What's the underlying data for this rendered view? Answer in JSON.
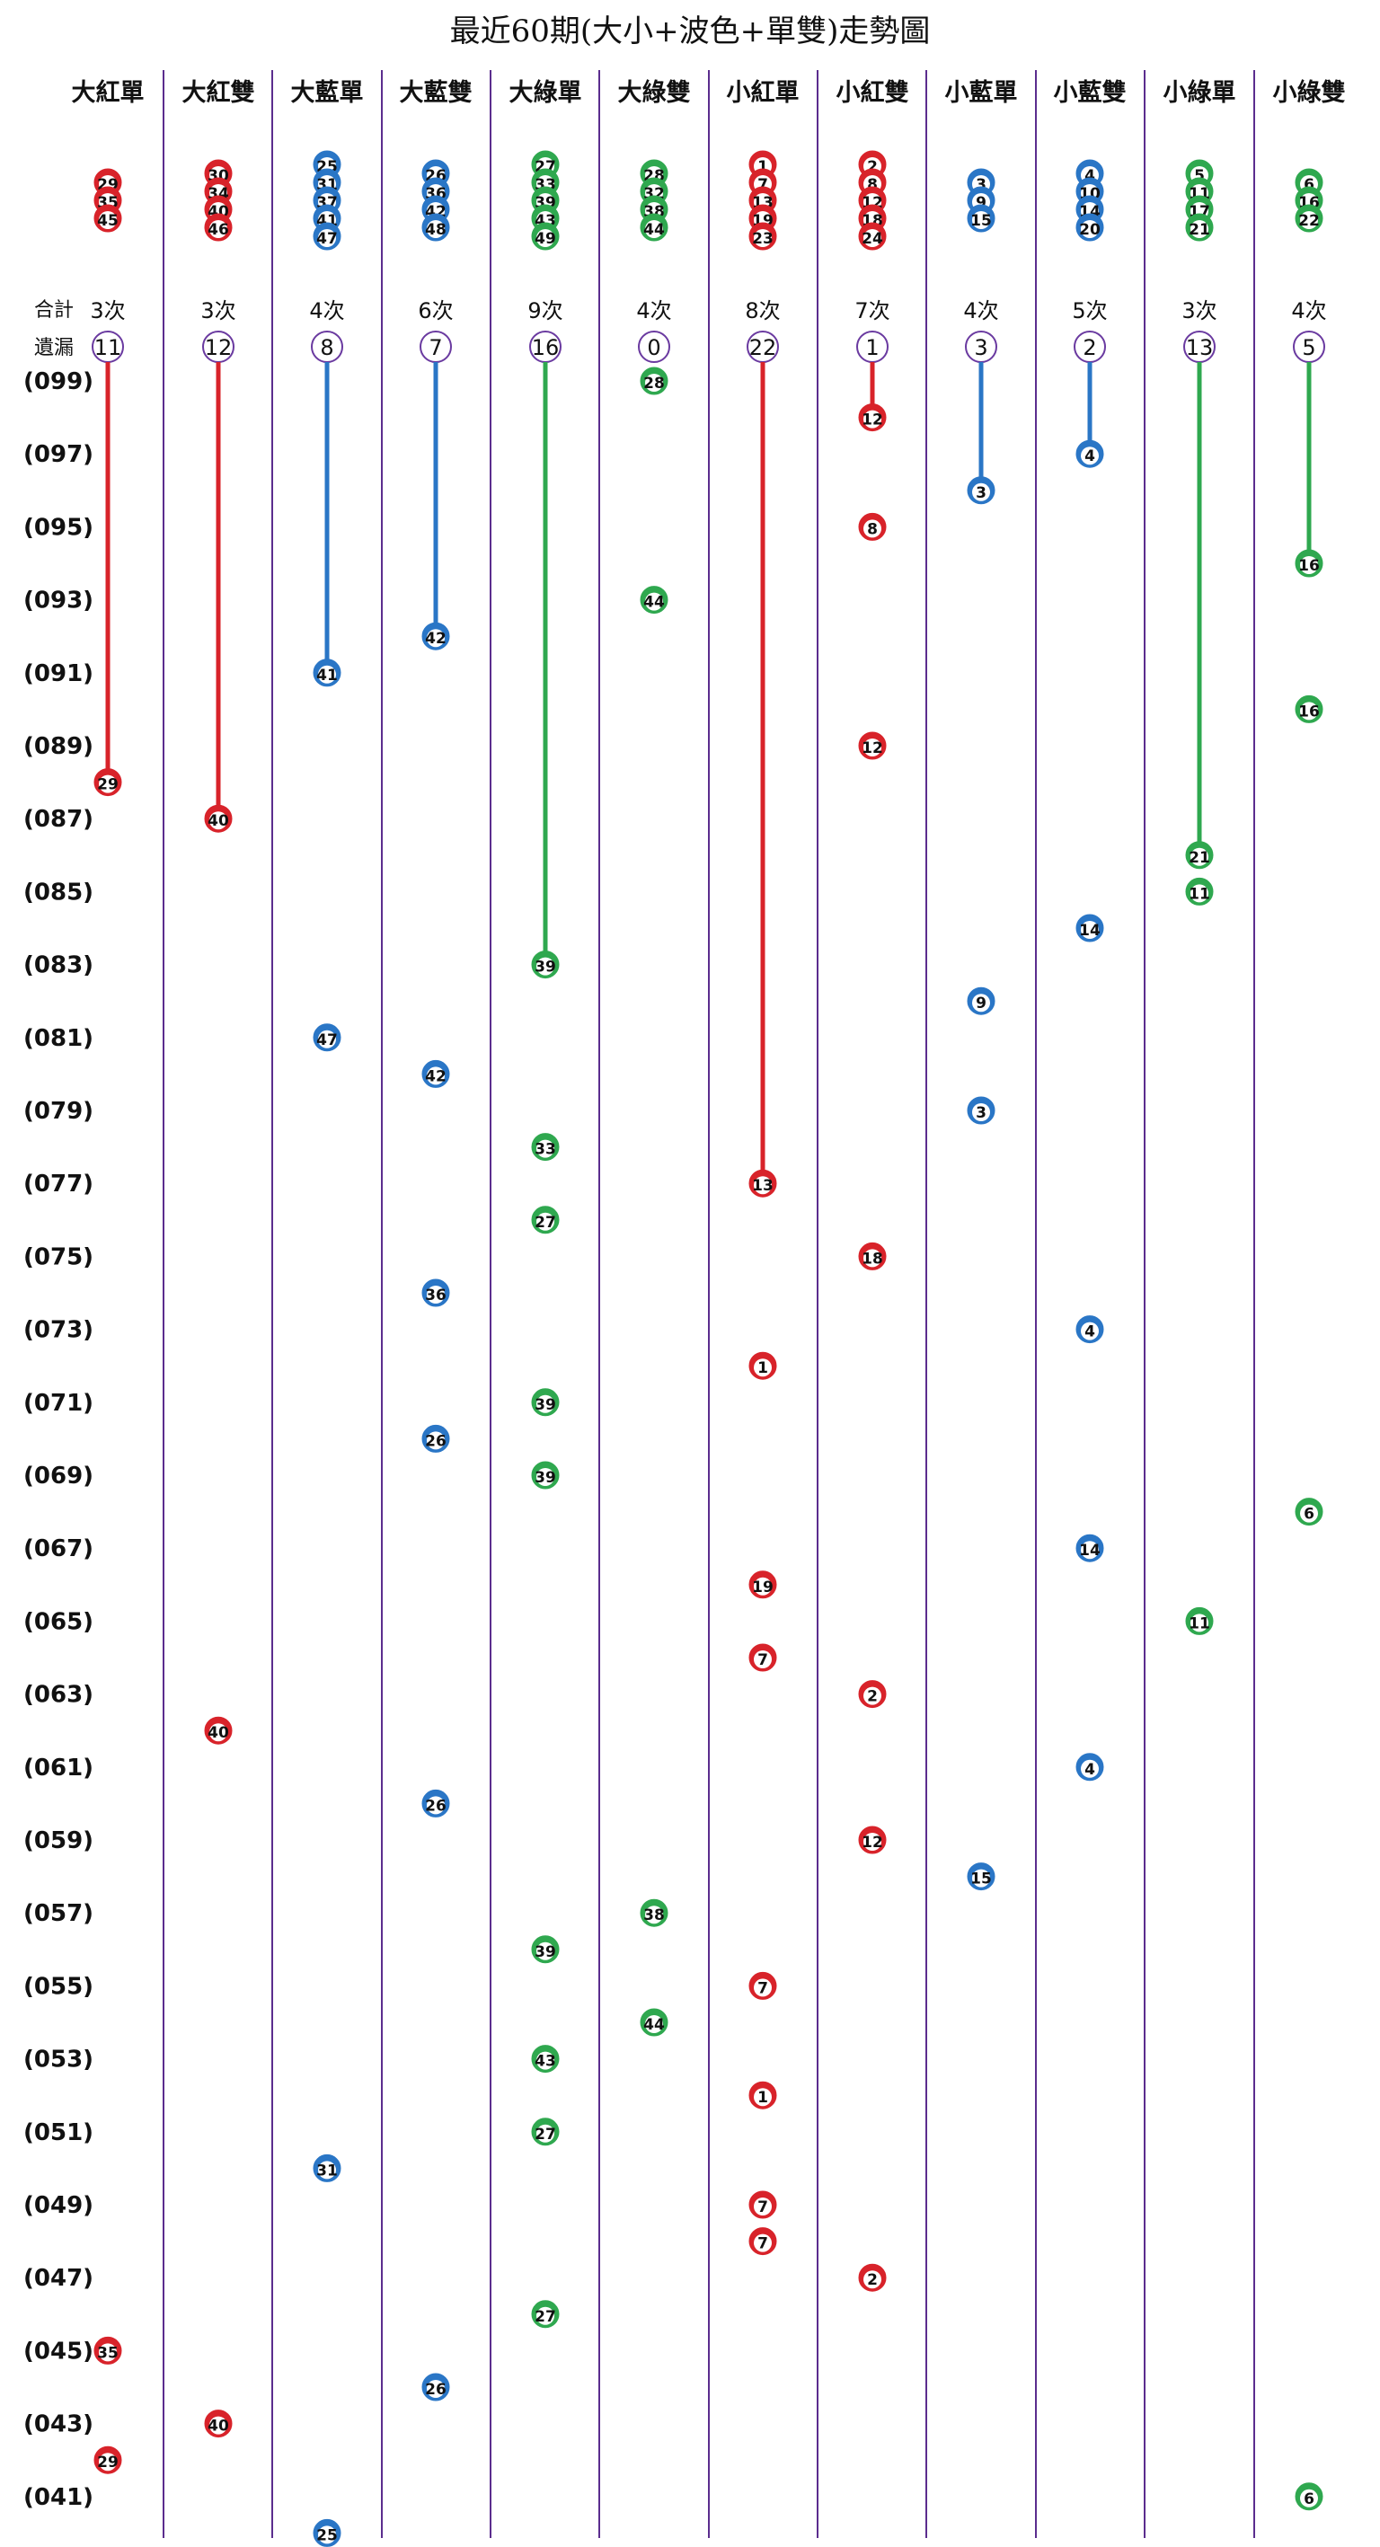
{
  "chart_data": {
    "type": "table",
    "title": "最近60期(大小+波色+單雙)走勢圖",
    "summary_labels": {
      "total": "合計",
      "missing": "遺漏"
    },
    "colors": {
      "red": "#d8232a",
      "blue": "#2a76c6",
      "green": "#2fa84f",
      "divider": "#5b2d8e",
      "missing_circle": "#6a3aa0"
    },
    "columns": [
      {
        "name": "大紅單",
        "color": "red",
        "numbers": [
          29,
          35,
          45
        ],
        "count": "3次",
        "missing": 11
      },
      {
        "name": "大紅雙",
        "color": "red",
        "numbers": [
          30,
          34,
          40,
          46
        ],
        "count": "3次",
        "missing": 12
      },
      {
        "name": "大藍單",
        "color": "blue",
        "numbers": [
          25,
          31,
          37,
          41,
          47
        ],
        "count": "4次",
        "missing": 8
      },
      {
        "name": "大藍雙",
        "color": "blue",
        "numbers": [
          26,
          36,
          42,
          48
        ],
        "count": "6次",
        "missing": 7
      },
      {
        "name": "大綠單",
        "color": "green",
        "numbers": [
          27,
          33,
          39,
          43,
          49
        ],
        "count": "9次",
        "missing": 16
      },
      {
        "name": "大綠雙",
        "color": "green",
        "numbers": [
          28,
          32,
          38,
          44
        ],
        "count": "4次",
        "missing": 0
      },
      {
        "name": "小紅單",
        "color": "red",
        "numbers": [
          1,
          7,
          13,
          19,
          23
        ],
        "count": "8次",
        "missing": 22
      },
      {
        "name": "小紅雙",
        "color": "red",
        "numbers": [
          2,
          8,
          12,
          18,
          24
        ],
        "count": "7次",
        "missing": 1
      },
      {
        "name": "小藍單",
        "color": "blue",
        "numbers": [
          3,
          9,
          15
        ],
        "count": "4次",
        "missing": 3
      },
      {
        "name": "小藍雙",
        "color": "blue",
        "numbers": [
          4,
          10,
          14,
          20
        ],
        "count": "5次",
        "missing": 2
      },
      {
        "name": "小綠單",
        "color": "green",
        "numbers": [
          5,
          11,
          17,
          21
        ],
        "count": "3次",
        "missing": 13
      },
      {
        "name": "小綠雙",
        "color": "green",
        "numbers": [
          6,
          16,
          22
        ],
        "count": "4次",
        "missing": 5
      }
    ],
    "period_labels": [
      "(099)",
      "(097)",
      "(095)",
      "(093)",
      "(091)",
      "(089)",
      "(087)",
      "(085)",
      "(083)",
      "(081)",
      "(079)",
      "(077)",
      "(075)",
      "(073)",
      "(071)",
      "(069)",
      "(067)",
      "(065)",
      "(063)",
      "(061)",
      "(059)",
      "(057)",
      "(055)",
      "(053)",
      "(051)",
      "(049)",
      "(047)",
      "(045)",
      "(043)",
      "(041)"
    ],
    "draws": [
      {
        "period": 99,
        "col": 5,
        "num": 28
      },
      {
        "period": 98,
        "col": 7,
        "num": 12
      },
      {
        "period": 97,
        "col": 9,
        "num": 4
      },
      {
        "period": 96,
        "col": 8,
        "num": 3
      },
      {
        "period": 95,
        "col": 7,
        "num": 8
      },
      {
        "period": 94,
        "col": 11,
        "num": 16
      },
      {
        "period": 93,
        "col": 5,
        "num": 44
      },
      {
        "period": 92,
        "col": 3,
        "num": 42
      },
      {
        "period": 91,
        "col": 2,
        "num": 41
      },
      {
        "period": 90,
        "col": 11,
        "num": 16
      },
      {
        "period": 89,
        "col": 7,
        "num": 12
      },
      {
        "period": 88,
        "col": 0,
        "num": 29
      },
      {
        "period": 87,
        "col": 1,
        "num": 40
      },
      {
        "period": 86,
        "col": 10,
        "num": 21
      },
      {
        "period": 85,
        "col": 10,
        "num": 11
      },
      {
        "period": 84,
        "col": 9,
        "num": 14
      },
      {
        "period": 83,
        "col": 4,
        "num": 39
      },
      {
        "period": 82,
        "col": 8,
        "num": 9
      },
      {
        "period": 81,
        "col": 2,
        "num": 47
      },
      {
        "period": 80,
        "col": 3,
        "num": 42
      },
      {
        "period": 79,
        "col": 8,
        "num": 3
      },
      {
        "period": 78,
        "col": 4,
        "num": 33
      },
      {
        "period": 77,
        "col": 6,
        "num": 13
      },
      {
        "period": 76,
        "col": 4,
        "num": 27
      },
      {
        "period": 75,
        "col": 7,
        "num": 18
      },
      {
        "period": 74,
        "col": 3,
        "num": 36
      },
      {
        "period": 73,
        "col": 9,
        "num": 4
      },
      {
        "period": 72,
        "col": 6,
        "num": 1
      },
      {
        "period": 71,
        "col": 4,
        "num": 39
      },
      {
        "period": 70,
        "col": 3,
        "num": 26
      },
      {
        "period": 69,
        "col": 4,
        "num": 39
      },
      {
        "period": 68,
        "col": 11,
        "num": 6
      },
      {
        "period": 67,
        "col": 9,
        "num": 14
      },
      {
        "period": 66,
        "col": 6,
        "num": 19
      },
      {
        "period": 65,
        "col": 10,
        "num": 11
      },
      {
        "period": 64,
        "col": 6,
        "num": 7
      },
      {
        "period": 63,
        "col": 7,
        "num": 2
      },
      {
        "period": 62,
        "col": 1,
        "num": 40
      },
      {
        "period": 61,
        "col": 9,
        "num": 4
      },
      {
        "period": 60,
        "col": 3,
        "num": 26
      },
      {
        "period": 59,
        "col": 7,
        "num": 12
      },
      {
        "period": 58,
        "col": 8,
        "num": 15
      },
      {
        "period": 57,
        "col": 5,
        "num": 38
      },
      {
        "period": 56,
        "col": 4,
        "num": 39
      },
      {
        "period": 55,
        "col": 6,
        "num": 7
      },
      {
        "period": 54,
        "col": 5,
        "num": 44
      },
      {
        "period": 53,
        "col": 4,
        "num": 43
      },
      {
        "period": 52,
        "col": 6,
        "num": 1
      },
      {
        "period": 51,
        "col": 4,
        "num": 27
      },
      {
        "period": 50,
        "col": 2,
        "num": 31
      },
      {
        "period": 49,
        "col": 6,
        "num": 7
      },
      {
        "period": 48,
        "col": 6,
        "num": 7
      },
      {
        "period": 47,
        "col": 7,
        "num": 2
      },
      {
        "period": 46,
        "col": 4,
        "num": 27
      },
      {
        "period": 45,
        "col": 0,
        "num": 35
      },
      {
        "period": 44,
        "col": 3,
        "num": 26
      },
      {
        "period": 43,
        "col": 1,
        "num": 40
      },
      {
        "period": 42,
        "col": 0,
        "num": 29
      },
      {
        "period": 41,
        "col": 11,
        "num": 6
      },
      {
        "period": 40,
        "col": 2,
        "num": 25
      }
    ]
  }
}
